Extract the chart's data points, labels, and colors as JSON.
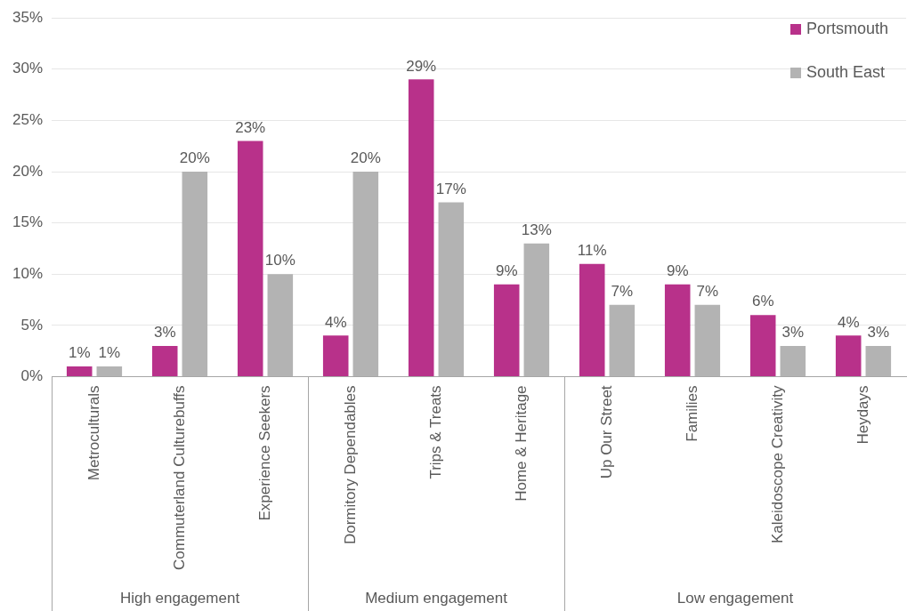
{
  "chart_data": {
    "type": "bar",
    "categories": [
      "Metroculturals",
      "Commuterland Culturebuffs",
      "Experience Seekers",
      "Dormitory Dependables",
      "Trips & Treats",
      "Home & Heritage",
      "Up Our Street",
      "Families",
      "Kaleidoscope Creativity",
      "Heydays"
    ],
    "series": [
      {
        "name": "Portsmouth",
        "color": "#b8318a",
        "values": [
          1,
          3,
          23,
          4,
          29,
          9,
          11,
          9,
          6,
          4
        ],
        "value_labels": [
          "1%",
          "3%",
          "23%",
          "4%",
          "29%",
          "9%",
          "11%",
          "9%",
          "6%",
          "4%"
        ]
      },
      {
        "name": "South East",
        "color": "#b3b3b3",
        "values": [
          1,
          20,
          10,
          20,
          17,
          13,
          7,
          7,
          3,
          3
        ],
        "value_labels": [
          "1%",
          "20%",
          "10%",
          "20%",
          "17%",
          "13%",
          "7%",
          "7%",
          "3%",
          "3%"
        ]
      }
    ],
    "ylim": [
      0,
      35
    ],
    "yticks": [
      {
        "value": 0,
        "label": "0%"
      },
      {
        "value": 5,
        "label": "5%"
      },
      {
        "value": 10,
        "label": "10%"
      },
      {
        "value": 15,
        "label": "15%"
      },
      {
        "value": 20,
        "label": "20%"
      },
      {
        "value": 25,
        "label": "25%"
      },
      {
        "value": 30,
        "label": "30%"
      },
      {
        "value": 35,
        "label": "35%"
      }
    ],
    "grid": "y",
    "legend": "top right",
    "annotations": [
      "High engagement",
      "Medium engagement",
      "Low engagement"
    ]
  }
}
